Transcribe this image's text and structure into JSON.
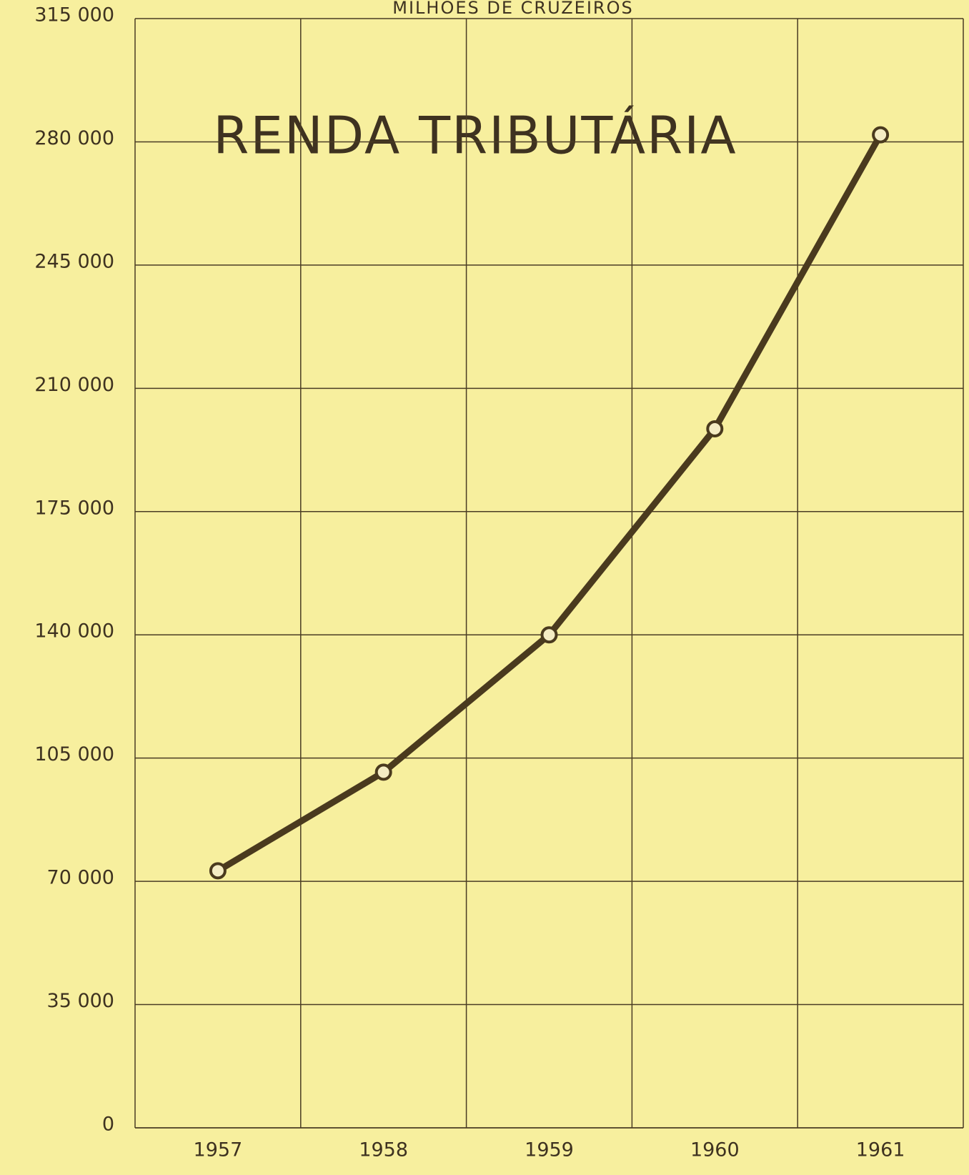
{
  "chart_data": {
    "type": "line",
    "title": "RENDA TRIBUTÁRIA",
    "subtitle": "MILHÕES DE CRUZEIROS",
    "categories": [
      "1957",
      "1958",
      "1959",
      "1960",
      "1961"
    ],
    "series": [
      {
        "name": "Renda tributária",
        "color": "#4a3a1e",
        "values": [
          73000,
          101000,
          140000,
          198500,
          282000
        ]
      }
    ],
    "ylim": [
      0,
      315000
    ],
    "yticks": [
      0,
      {
        "value": 35000,
        "label": "35 000"
      },
      {
        "value": 70000,
        "label": "70 000"
      },
      {
        "value": 105000,
        "label": "105 000"
      },
      {
        "value": 140000,
        "label": "140 000"
      },
      {
        "value": 175000,
        "label": "175 000"
      },
      {
        "value": 210000,
        "label": "210 000"
      },
      {
        "value": 245000,
        "label": "245 000"
      },
      {
        "value": 280000,
        "label": "280 000"
      },
      {
        "value": 315000,
        "label": "315 000"
      }
    ],
    "grid": true
  }
}
